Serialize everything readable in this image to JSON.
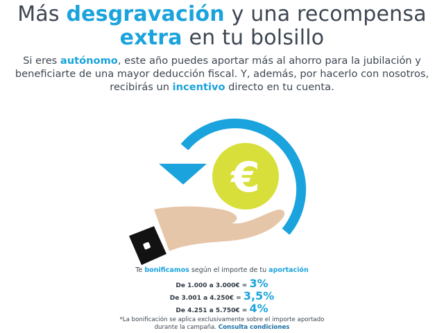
{
  "title": {
    "part1": "Más ",
    "highlight1": "desgravación",
    "part2": " y una recompensa",
    "highlight2": "extra",
    "part3": " en tu bolsillo"
  },
  "intro": {
    "part1": "Si eres ",
    "highlight1": "autónomo",
    "part2": ", este año puedes aportar más al ahorro para la jubilación y beneficiarte de una mayor deducción fiscal. Y, además, por hacerlo con nosotros, recibirás un ",
    "highlight2": "incentivo",
    "part3": " directo en tu cuenta."
  },
  "illustration": {
    "symbol": "€",
    "arrow_color": "#1aa3dc",
    "coin_color": "#d9df3a",
    "hand_color": "#e6c6a8",
    "cuff_color": "#121212"
  },
  "bonus": {
    "intro_part1": "Te ",
    "intro_highlight1": "bonificamos",
    "intro_part2": " según el importe de tu ",
    "intro_highlight2": "aportación",
    "tiers": [
      {
        "range": "De 1.000 a 3.000€ = ",
        "percent": "3%"
      },
      {
        "range": "De 3.001 a 4.250€ = ",
        "percent": "3,5%"
      },
      {
        "range": "De 4.251 a 5.750€ = ",
        "percent": "4%"
      }
    ],
    "footnote_line1": "*La bonificación se aplica exclusivamente sobre el importe aportado",
    "footnote_line2": "durante la campaña. ",
    "conditions_link": "Consulta condiciones"
  }
}
